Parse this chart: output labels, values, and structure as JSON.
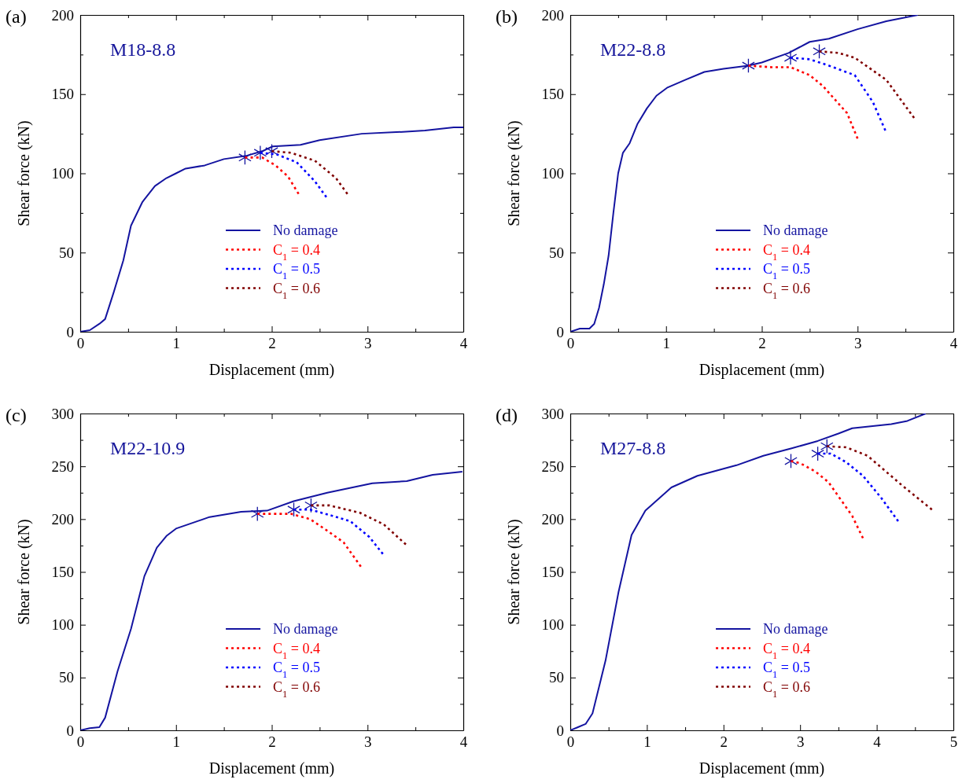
{
  "chart_data": [
    {
      "type": "line",
      "title": "(a)",
      "xlabel": "Displacement (mm)",
      "ylabel": "Shear force (kN)",
      "annotations": [
        "M18-8.8"
      ],
      "xlim": [
        0,
        4
      ],
      "ylim": [
        0,
        200
      ],
      "xticks": [
        0,
        {
          "value": 0.5,
          "label": null
        },
        1,
        {
          "value": 1.5,
          "label": null
        },
        2,
        {
          "value": 2.5,
          "label": null
        },
        3,
        {
          "value": 3.5,
          "label": null
        },
        4
      ],
      "yticks": [
        0,
        {
          "value": 25,
          "label": null
        },
        50,
        {
          "value": 75,
          "label": null
        },
        100,
        {
          "value": 125,
          "label": null
        },
        150,
        {
          "value": 175,
          "label": null
        },
        200
      ],
      "legend": "bottom",
      "series": [
        {
          "name": "No damage",
          "type": "line",
          "line_style": "solid",
          "marker": "none",
          "color": "#1414a0",
          "x": [
            0,
            0.1,
            0.2,
            0.26,
            0.35,
            0.45,
            0.53,
            0.65,
            0.78,
            0.9,
            1.0,
            1.1,
            1.3,
            1.5,
            1.73,
            1.9,
            2.01,
            2.3,
            2.5,
            2.94,
            3.3,
            3.6,
            3.9,
            4.0
          ],
          "values": [
            0,
            1,
            5,
            8,
            25,
            45,
            67,
            82,
            92,
            97,
            100,
            103,
            105,
            109,
            111,
            114,
            117,
            118,
            121,
            125,
            126,
            127,
            129,
            129
          ]
        },
        {
          "name": "C$_{1}$ = 0.4",
          "type": "line",
          "line_style": "dotted",
          "marker": "none",
          "color": "#ff0000",
          "x": [
            1.72,
            1.9,
            2.04,
            2.17,
            2.28
          ],
          "values": [
            110,
            110,
            105,
            98,
            87
          ]
        },
        {
          "name": "C$_{1}$ = 0.5",
          "type": "line",
          "line_style": "dotted",
          "marker": "none",
          "color": "#0000ff",
          "x": [
            1.88,
            2.05,
            2.26,
            2.45,
            2.57
          ],
          "values": [
            113,
            112,
            107,
            95,
            85
          ]
        },
        {
          "name": "C$_{1}$ = 0.6",
          "type": "line",
          "line_style": "dotted",
          "marker": "none",
          "color": "#800000",
          "x": [
            2.0,
            2.2,
            2.45,
            2.67,
            2.79
          ],
          "values": [
            114,
            113,
            108,
            97,
            87
          ]
        },
        {
          "type": "scatter",
          "marker": "cross",
          "color": "#1414a0",
          "x": [
            1.72,
            1.88,
            2.0
          ],
          "values": [
            110,
            113,
            114
          ]
        }
      ]
    },
    {
      "type": "line",
      "title": "(b)",
      "xlabel": "Displacement (mm)",
      "ylabel": "Shear force (kN)",
      "annotations": [
        "M22-8.8"
      ],
      "xlim": [
        0,
        4
      ],
      "ylim": [
        0,
        200
      ],
      "xticks": [
        0,
        {
          "value": 0.5,
          "label": null
        },
        1,
        {
          "value": 1.5,
          "label": null
        },
        2,
        {
          "value": 2.5,
          "label": null
        },
        3,
        {
          "value": 3.5,
          "label": null
        },
        4
      ],
      "yticks": [
        0,
        {
          "value": 25,
          "label": null
        },
        50,
        {
          "value": 75,
          "label": null
        },
        100,
        {
          "value": 125,
          "label": null
        },
        150,
        {
          "value": 175,
          "label": null
        },
        200
      ],
      "legend": "bottom",
      "series": [
        {
          "name": "No damage",
          "type": "line",
          "line_style": "solid",
          "marker": "none",
          "color": "#1414a0",
          "x": [
            0,
            0.1,
            0.2,
            0.25,
            0.3,
            0.35,
            0.4,
            0.45,
            0.5,
            0.55,
            0.62,
            0.7,
            0.8,
            0.9,
            1.01,
            1.2,
            1.4,
            1.6,
            1.86,
            2.0,
            2.28,
            2.5,
            2.7,
            3.0,
            3.3,
            3.63
          ],
          "values": [
            0,
            2,
            2,
            5,
            15,
            30,
            48,
            75,
            100,
            113,
            119,
            131,
            141,
            149,
            154,
            159,
            164,
            166,
            168,
            170,
            176,
            183,
            185,
            191,
            196,
            200
          ]
        },
        {
          "name": "C$_{1}$ = 0.4",
          "type": "line",
          "line_style": "dotted",
          "marker": "none",
          "color": "#ff0000",
          "x": [
            1.86,
            2.1,
            2.3,
            2.5,
            2.64,
            2.89,
            3.0
          ],
          "values": [
            168,
            167,
            167,
            162,
            155,
            138,
            122
          ]
        },
        {
          "name": "C$_{1}$ = 0.5",
          "type": "line",
          "line_style": "dotted",
          "marker": "none",
          "color": "#0000ff",
          "x": [
            2.3,
            2.5,
            2.7,
            2.97,
            3.16,
            3.29
          ],
          "values": [
            173,
            172,
            168,
            162,
            145,
            127
          ]
        },
        {
          "name": "C$_{1}$ = 0.6",
          "type": "line",
          "line_style": "dotted",
          "marker": "none",
          "color": "#800000",
          "x": [
            2.6,
            2.8,
            2.97,
            3.3,
            3.59
          ],
          "values": [
            177,
            176,
            173,
            159,
            135
          ]
        },
        {
          "type": "scatter",
          "marker": "cross",
          "color": "#1414a0",
          "x": [
            1.86,
            2.3,
            2.6
          ],
          "values": [
            168,
            173,
            177
          ]
        }
      ]
    },
    {
      "type": "line",
      "title": "(c)",
      "xlabel": "Displacement (mm)",
      "ylabel": "Shear force (kN)",
      "annotations": [
        "M22-10.9"
      ],
      "xlim": [
        0,
        4
      ],
      "ylim": [
        0,
        300
      ],
      "xticks": [
        0,
        {
          "value": 0.5,
          "label": null
        },
        1,
        {
          "value": 1.5,
          "label": null
        },
        2,
        {
          "value": 2.5,
          "label": null
        },
        3,
        {
          "value": 3.5,
          "label": null
        },
        4
      ],
      "yticks": [
        0,
        {
          "value": 25,
          "label": null
        },
        50,
        {
          "value": 75,
          "label": null
        },
        100,
        {
          "value": 125,
          "label": null
        },
        150,
        {
          "value": 175,
          "label": null
        },
        200,
        {
          "value": 225,
          "label": null
        },
        250,
        {
          "value": 275,
          "label": null
        },
        300
      ],
      "legend": "bottom",
      "series": [
        {
          "name": "No damage",
          "type": "line",
          "line_style": "solid",
          "marker": "none",
          "color": "#1414a0",
          "x": [
            0,
            0.1,
            0.2,
            0.26,
            0.39,
            0.53,
            0.67,
            0.8,
            0.9,
            1.0,
            1.35,
            1.68,
            1.95,
            2.23,
            2.58,
            3.05,
            3.41,
            3.68,
            3.99
          ],
          "values": [
            0,
            2,
            3,
            12,
            56,
            96,
            146,
            173,
            184,
            191,
            202,
            207,
            208,
            217,
            225,
            234,
            236,
            242,
            245
          ]
        },
        {
          "name": "C$_{1}$ = 0.4",
          "type": "line",
          "line_style": "dotted",
          "marker": "none",
          "color": "#ff0000",
          "x": [
            1.85,
            2.2,
            2.4,
            2.58,
            2.75,
            2.93
          ],
          "values": [
            205,
            205,
            200,
            189,
            178,
            155
          ]
        },
        {
          "name": "C$_{1}$ = 0.5",
          "type": "line",
          "line_style": "dotted",
          "marker": "none",
          "color": "#0000ff",
          "x": [
            2.23,
            2.4,
            2.6,
            2.82,
            3.02,
            3.16
          ],
          "values": [
            209,
            209,
            204,
            198,
            183,
            167
          ]
        },
        {
          "name": "C$_{1}$ = 0.6",
          "type": "line",
          "line_style": "dotted",
          "marker": "none",
          "color": "#800000",
          "x": [
            2.41,
            2.6,
            2.92,
            3.17,
            3.4
          ],
          "values": [
            213,
            213,
            206,
            195,
            176
          ]
        },
        {
          "type": "scatter",
          "marker": "cross",
          "color": "#1414a0",
          "x": [
            1.85,
            2.23,
            2.41
          ],
          "values": [
            205,
            209,
            213
          ]
        }
      ]
    },
    {
      "type": "line",
      "title": "(d)",
      "xlabel": "Displacement (mm)",
      "ylabel": "Shear force (kN)",
      "annotations": [
        "M27-8.8"
      ],
      "xlim": [
        0,
        5
      ],
      "ylim": [
        0,
        300
      ],
      "xticks": [
        0,
        {
          "value": 0.5,
          "label": null
        },
        1,
        {
          "value": 1.5,
          "label": null
        },
        2,
        {
          "value": 2.5,
          "label": null
        },
        3,
        {
          "value": 3.5,
          "label": null
        },
        4,
        {
          "value": 4.5,
          "label": null
        },
        5
      ],
      "yticks": [
        0,
        {
          "value": 25,
          "label": null
        },
        50,
        {
          "value": 75,
          "label": null
        },
        100,
        {
          "value": 125,
          "label": null
        },
        150,
        {
          "value": 175,
          "label": null
        },
        200,
        {
          "value": 225,
          "label": null
        },
        250,
        {
          "value": 275,
          "label": null
        },
        300
      ],
      "legend": "bottom",
      "series": [
        {
          "name": "No damage",
          "type": "line",
          "line_style": "solid",
          "marker": "none",
          "color": "#1414a0",
          "x": [
            0,
            0.1,
            0.2,
            0.29,
            0.46,
            0.63,
            0.8,
            0.98,
            1.32,
            1.66,
            2.17,
            2.52,
            2.89,
            3.23,
            3.5,
            3.68,
            4.19,
            4.4,
            4.64
          ],
          "values": [
            0,
            3,
            6,
            16,
            66,
            131,
            185,
            208,
            230,
            241,
            251,
            260,
            267,
            274,
            281,
            286,
            290,
            293,
            300
          ]
        },
        {
          "name": "C$_{1}$ = 0.4",
          "type": "line",
          "line_style": "dotted",
          "marker": "none",
          "color": "#ff0000",
          "x": [
            2.88,
            3.0,
            3.2,
            3.37,
            3.68,
            3.82
          ],
          "values": [
            255,
            253,
            245,
            235,
            203,
            182
          ]
        },
        {
          "name": "C$_{1}$ = 0.5",
          "type": "line",
          "line_style": "dotted",
          "marker": "none",
          "color": "#0000ff",
          "x": [
            3.23,
            3.4,
            3.6,
            3.82,
            4.06,
            4.28
          ],
          "values": [
            262,
            262,
            254,
            241,
            220,
            198
          ]
        },
        {
          "name": "C$_{1}$ = 0.6",
          "type": "line",
          "line_style": "dotted",
          "marker": "none",
          "color": "#800000",
          "x": [
            3.35,
            3.6,
            3.88,
            4.33,
            4.72
          ],
          "values": [
            269,
            268,
            260,
            232,
            209
          ]
        },
        {
          "type": "scatter",
          "marker": "cross",
          "color": "#1414a0",
          "x": [
            2.88,
            3.23,
            3.35
          ],
          "values": [
            255,
            262,
            269
          ]
        }
      ]
    }
  ]
}
